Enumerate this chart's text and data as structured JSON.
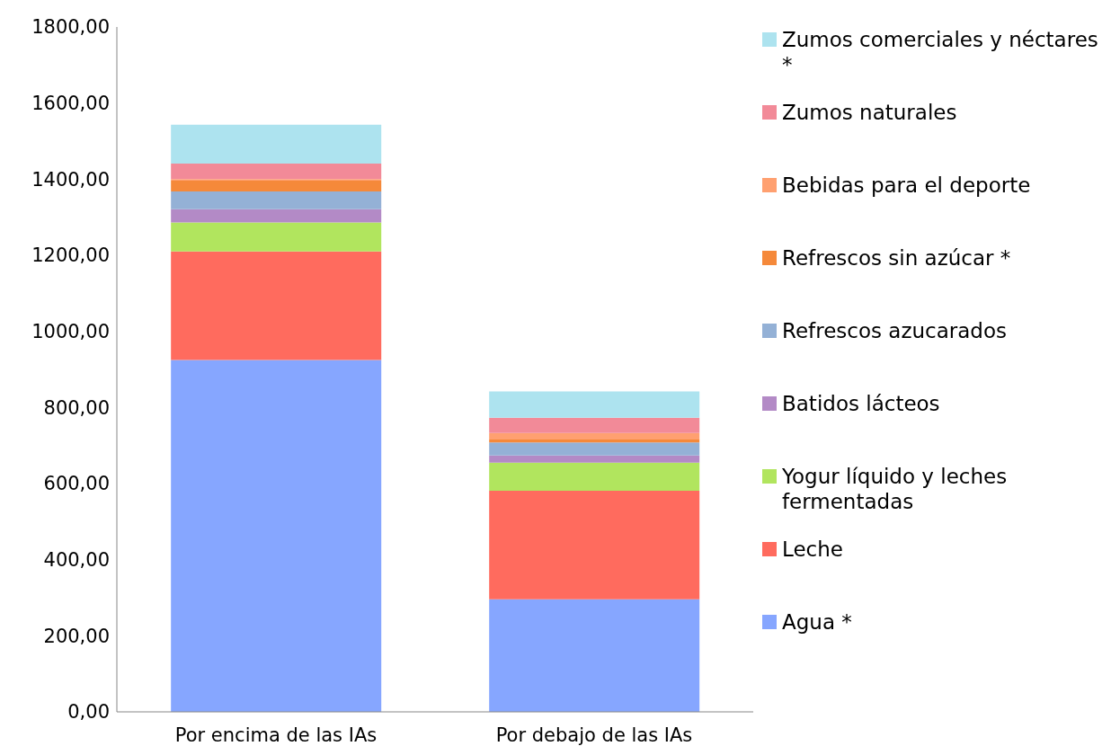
{
  "chart_data": {
    "type": "bar",
    "stacked": true,
    "categories": [
      "Por encima de las IAs",
      "Por debajo de las IAs"
    ],
    "series": [
      {
        "name": "Agua *",
        "color": "#86a6ff",
        "values": [
          925,
          296
        ]
      },
      {
        "name": "Leche",
        "color": "#ff6b5e",
        "values": [
          285,
          285
        ]
      },
      {
        "name": "Yogur líquido y leches fermentadas",
        "color": "#b1e55e",
        "values": [
          76,
          74
        ]
      },
      {
        "name": "Batidos lácteos",
        "color": "#b38ac6",
        "values": [
          35,
          19
        ]
      },
      {
        "name": "Refrescos azucarados",
        "color": "#94b1d6",
        "values": [
          47,
          34
        ]
      },
      {
        "name": "Refrescos sin azúcar *",
        "color": "#f5893a",
        "values": [
          28,
          8
        ]
      },
      {
        "name": "Bebidas para el deporte",
        "color": "#ffa070",
        "values": [
          4,
          17
        ]
      },
      {
        "name": "Zumos naturales",
        "color": "#f28a98",
        "values": [
          41,
          40
        ]
      },
      {
        "name": "Zumos comerciales y néctares *",
        "color": "#ade3ef",
        "values": [
          102,
          69
        ]
      }
    ],
    "ylim": [
      0,
      1800
    ],
    "yticks": [
      {
        "value": 0,
        "label": "0,00"
      },
      {
        "value": 200,
        "label": "200,00"
      },
      {
        "value": 400,
        "label": "400,00"
      },
      {
        "value": 600,
        "label": "600,00"
      },
      {
        "value": 800,
        "label": "800,00"
      },
      {
        "value": 1000,
        "label": "1000,00"
      },
      {
        "value": 1200,
        "label": "1200,00"
      },
      {
        "value": 1400,
        "label": "1400,00"
      },
      {
        "value": 1600,
        "label": "1600,00"
      },
      {
        "value": 1800,
        "label": "1800,00"
      }
    ],
    "grid": false,
    "legend": "right"
  }
}
